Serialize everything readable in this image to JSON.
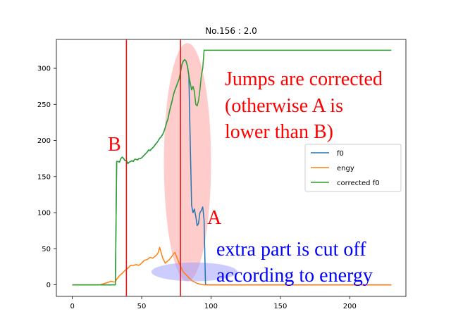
{
  "chart_data": {
    "type": "line",
    "title": "No.156 :  2.0",
    "xlabel": "",
    "ylabel": "",
    "xlim": [
      -11.5,
      240.5
    ],
    "ylim": [
      -16,
      340
    ],
    "xticks": [
      0,
      50,
      100,
      150,
      200
    ],
    "yticks": [
      0,
      50,
      100,
      150,
      200,
      250,
      300
    ],
    "grid": false,
    "legend_position": "center-right",
    "series": [
      {
        "name": "f0",
        "color": "#1f77b4",
        "x": [
          0,
          5,
          10,
          15,
          20,
          25,
          29,
          30,
          31,
          32,
          33,
          34,
          35,
          36,
          37,
          38,
          39,
          40,
          41,
          42,
          43,
          44,
          45,
          46,
          47,
          48,
          49,
          50,
          51,
          52,
          53,
          54,
          55,
          56,
          57,
          58,
          59,
          60,
          61,
          62,
          63,
          64,
          65,
          66,
          67,
          68,
          69,
          70,
          71,
          72,
          73,
          74,
          75,
          76,
          77,
          78,
          79,
          80,
          81,
          82,
          83,
          84,
          85,
          86,
          87,
          88,
          89,
          90,
          91,
          92,
          93,
          94,
          95,
          96,
          97,
          98,
          100,
          110,
          120,
          150,
          200,
          230
        ],
        "y": [
          0,
          0,
          0,
          0,
          0,
          0,
          0,
          0,
          0,
          171,
          171,
          170,
          175,
          177,
          175,
          172,
          172,
          168,
          170,
          171,
          172,
          171,
          174,
          174,
          173,
          175,
          175,
          176,
          178,
          180,
          182,
          184,
          187,
          186,
          188,
          190,
          192,
          195,
          197,
          200,
          203,
          205,
          208,
          212,
          218,
          225,
          230,
          240,
          248,
          255,
          264,
          270,
          275,
          280,
          285,
          295,
          305,
          310,
          312,
          310,
          303,
          290,
          200,
          110,
          100,
          105,
          95,
          82,
          85,
          100,
          103,
          108,
          90,
          1,
          0,
          0,
          0,
          0,
          0,
          0,
          0,
          0
        ]
      },
      {
        "name": "engy",
        "color": "#ff7f0e",
        "x": [
          0,
          5,
          10,
          15,
          20,
          25,
          28,
          30,
          31,
          32,
          33,
          34,
          36,
          38,
          40,
          42,
          44,
          46,
          48,
          50,
          52,
          54,
          56,
          58,
          60,
          61,
          62,
          63,
          64,
          65,
          66,
          67,
          68,
          70,
          72,
          73,
          74,
          75,
          76,
          77,
          78,
          79,
          80,
          82,
          84,
          86,
          88,
          90,
          92,
          95,
          100,
          110,
          150,
          200,
          230
        ],
        "y": [
          0,
          0,
          0,
          0,
          0,
          3,
          5,
          4,
          4,
          8,
          10,
          13,
          16,
          20,
          23,
          27,
          27,
          28,
          27,
          30,
          34,
          35,
          38,
          37,
          40,
          42,
          45,
          52,
          45,
          38,
          34,
          30,
          32,
          35,
          40,
          43,
          45,
          40,
          35,
          30,
          26,
          22,
          18,
          14,
          10,
          6,
          4,
          2,
          1,
          0,
          0,
          0,
          0,
          0,
          0
        ]
      },
      {
        "name": "corrected f0",
        "color": "#2ca02c",
        "x": [
          0,
          5,
          10,
          15,
          20,
          25,
          29,
          30,
          31,
          32,
          33,
          34,
          35,
          36,
          37,
          38,
          39,
          40,
          41,
          42,
          43,
          44,
          45,
          46,
          47,
          48,
          49,
          50,
          51,
          52,
          53,
          54,
          55,
          56,
          57,
          58,
          59,
          60,
          61,
          62,
          63,
          64,
          65,
          66,
          67,
          68,
          69,
          70,
          71,
          72,
          73,
          74,
          75,
          76,
          77,
          78,
          79,
          80,
          81,
          82,
          83,
          84,
          85,
          86,
          87,
          88,
          89,
          90,
          91,
          92,
          93,
          94,
          95,
          96,
          100,
          120,
          150,
          200,
          230
        ],
        "y": [
          0,
          0,
          0,
          0,
          0,
          0,
          0,
          0,
          0,
          171,
          171,
          170,
          175,
          177,
          175,
          172,
          172,
          168,
          170,
          171,
          172,
          171,
          174,
          174,
          173,
          175,
          175,
          176,
          178,
          180,
          182,
          184,
          187,
          186,
          188,
          190,
          192,
          195,
          197,
          200,
          203,
          205,
          208,
          212,
          218,
          225,
          230,
          240,
          248,
          255,
          264,
          270,
          275,
          280,
          285,
          295,
          305,
          310,
          312,
          310,
          303,
          290,
          280,
          270,
          275,
          268,
          250,
          248,
          255,
          270,
          290,
          300,
          325,
          325,
          325,
          325,
          325,
          325,
          325
        ]
      }
    ],
    "vlines": [
      {
        "x": 39,
        "color": "#e31a1c"
      },
      {
        "x": 78,
        "color": "#e31a1c"
      }
    ],
    "highlights": [
      {
        "cx": 83,
        "cy": 170,
        "rx": 17,
        "ry": 165,
        "color": "#ff9999",
        "opacity": 0.5
      },
      {
        "cx": 88,
        "cy": 18,
        "rx": 31,
        "ry": 13,
        "color": "#9999ff",
        "opacity": 0.5
      }
    ],
    "annotations": [
      {
        "id": "jumps",
        "lines": [
          "Jumps are corrected",
          "(otherwise A is",
          "lower than B)"
        ],
        "color": "#ff0000"
      },
      {
        "id": "cut",
        "lines": [
          "extra part is cut off",
          "according to energy"
        ],
        "color": "#0000ff"
      },
      {
        "id": "label_a",
        "text": "A",
        "color": "#ff0000"
      },
      {
        "id": "label_b",
        "text": "B",
        "color": "#ff0000"
      }
    ]
  }
}
